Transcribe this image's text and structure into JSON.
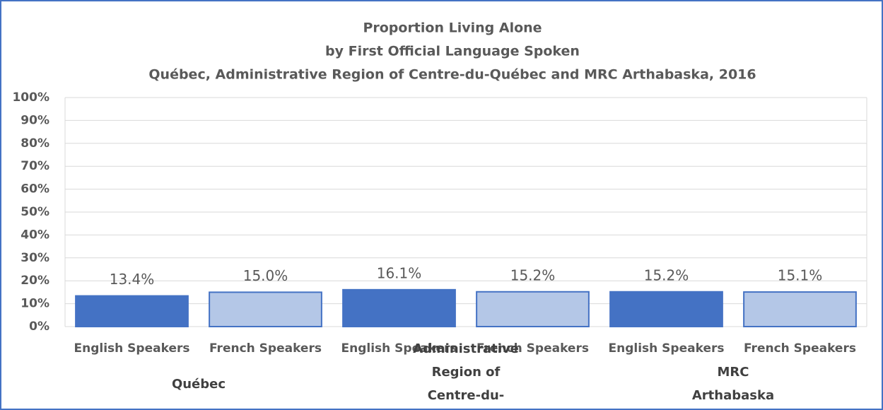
{
  "chart_data": {
    "type": "bar",
    "title": [
      "Proportion  Living Alone",
      "by First Official Language Spoken",
      "Québec, Administrative Region of Centre-du-Québec and MRC Arthabaska, 2016"
    ],
    "colors": [
      "#4472c4",
      "#b4c7e7"
    ],
    "groups": [
      {
        "name": "Québec",
        "categories": [
          "English Speakers",
          "French Speakers"
        ],
        "values": [
          13.4,
          15.0
        ],
        "value_labels": [
          "13.4%",
          "15.0%"
        ]
      },
      {
        "name": "Administrative Region of Centre-du-Québec",
        "categories": [
          "English Speakers",
          "French Speakers"
        ],
        "values": [
          16.1,
          15.2
        ],
        "value_labels": [
          "16.1%",
          "15.2%"
        ]
      },
      {
        "name": "MRC Arthabaska",
        "categories": [
          "English Speakers",
          "French Speakers"
        ],
        "values": [
          15.2,
          15.1
        ],
        "value_labels": [
          "15.2%",
          "15.1%"
        ]
      }
    ],
    "ylim": [
      0,
      100
    ],
    "yticks": [
      {
        "value": 0,
        "label": "0%"
      },
      {
        "value": 10,
        "label": "10%"
      },
      {
        "value": 20,
        "label": "20%"
      },
      {
        "value": 30,
        "label": "30%"
      },
      {
        "value": 40,
        "label": "40%"
      },
      {
        "value": 50,
        "label": "50%"
      },
      {
        "value": 60,
        "label": "60%"
      },
      {
        "value": 70,
        "label": "70%"
      },
      {
        "value": 80,
        "label": "80%"
      },
      {
        "value": 90,
        "label": "90%"
      },
      {
        "value": 100,
        "label": "100%"
      }
    ],
    "grid": true
  }
}
